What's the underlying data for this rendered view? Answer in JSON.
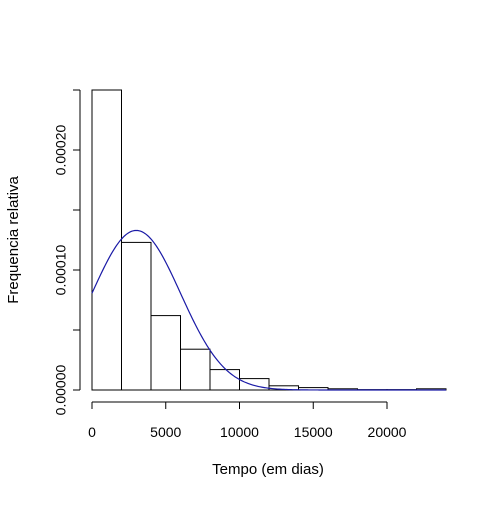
{
  "chart_data": {
    "type": "histogram",
    "title": "",
    "xlabel": "Tempo (em dias)",
    "ylabel": "Frequencia relativa",
    "xlim": [
      0,
      24000
    ],
    "ylim": [
      0,
      0.00025
    ],
    "x_ticks": [
      0,
      5000,
      10000,
      15000,
      20000
    ],
    "x_tick_labels": [
      "0",
      "5000",
      "10000",
      "15000",
      "20000"
    ],
    "y_ticks": [
      0,
      5e-05,
      0.0001,
      0.00015,
      0.0002,
      0.00025
    ],
    "y_tick_labels": [
      "0.00000",
      "",
      "0.00010",
      "",
      "0.00020",
      ""
    ],
    "bins": [
      {
        "x0": 0,
        "x1": 2000,
        "value": 0.00025
      },
      {
        "x0": 2000,
        "x1": 4000,
        "value": 0.000123
      },
      {
        "x0": 4000,
        "x1": 6000,
        "value": 6.2e-05
      },
      {
        "x0": 6000,
        "x1": 8000,
        "value": 3.4e-05
      },
      {
        "x0": 8000,
        "x1": 10000,
        "value": 1.7e-05
      },
      {
        "x0": 10000,
        "x1": 12000,
        "value": 9.5e-06
      },
      {
        "x0": 12000,
        "x1": 14000,
        "value": 3.5e-06
      },
      {
        "x0": 14000,
        "x1": 16000,
        "value": 2e-06
      },
      {
        "x0": 16000,
        "x1": 18000,
        "value": 1e-06
      },
      {
        "x0": 18000,
        "x1": 20000,
        "value": 3e-07
      },
      {
        "x0": 20000,
        "x1": 22000,
        "value": 3e-07
      },
      {
        "x0": 22000,
        "x1": 24000,
        "value": 1e-06
      }
    ],
    "curve": {
      "type": "normal-density",
      "mean": 3000,
      "sd": 3000,
      "color": "#1a1aa6",
      "x_range": [
        0,
        24000
      ]
    },
    "grid": false,
    "legend": "none",
    "bar_fill": "#ffffff",
    "bar_stroke": "#000000"
  }
}
